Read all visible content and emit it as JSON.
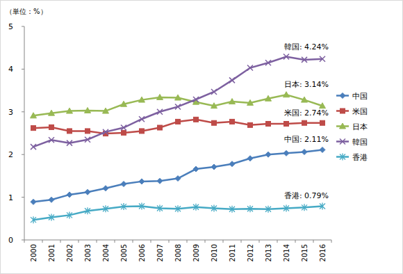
{
  "chart_data": {
    "type": "line",
    "y_label": "（単位：%）",
    "categories": [
      "2000",
      "2001",
      "2002",
      "2003",
      "2004",
      "2005",
      "2006",
      "2007",
      "2008",
      "2009",
      "2010",
      "2011",
      "2012",
      "2013",
      "2014",
      "2015",
      "2016"
    ],
    "series": [
      {
        "name": "中国",
        "color": "#4a7ebb",
        "marker": "diamond",
        "values": [
          0.89,
          0.94,
          1.06,
          1.12,
          1.21,
          1.31,
          1.37,
          1.38,
          1.44,
          1.66,
          1.71,
          1.78,
          1.91,
          2.0,
          2.03,
          2.06,
          2.11
        ]
      },
      {
        "name": "米国",
        "color": "#be4b48",
        "marker": "square",
        "values": [
          2.62,
          2.64,
          2.55,
          2.55,
          2.49,
          2.51,
          2.55,
          2.63,
          2.77,
          2.82,
          2.74,
          2.77,
          2.69,
          2.72,
          2.72,
          2.74,
          2.74
        ]
      },
      {
        "name": "日本",
        "color": "#98b954",
        "marker": "triangle",
        "values": [
          2.91,
          2.97,
          3.02,
          3.03,
          3.02,
          3.18,
          3.28,
          3.34,
          3.33,
          3.23,
          3.14,
          3.24,
          3.21,
          3.31,
          3.4,
          3.28,
          3.14
        ]
      },
      {
        "name": "韓国",
        "color": "#7d60a0",
        "marker": "x",
        "values": [
          2.18,
          2.34,
          2.27,
          2.35,
          2.53,
          2.63,
          2.83,
          3.0,
          3.12,
          3.29,
          3.47,
          3.74,
          4.03,
          4.15,
          4.29,
          4.22,
          4.24
        ]
      },
      {
        "name": "香港",
        "color": "#46aac5",
        "marker": "star",
        "values": [
          0.47,
          0.53,
          0.58,
          0.68,
          0.73,
          0.78,
          0.79,
          0.74,
          0.73,
          0.77,
          0.74,
          0.72,
          0.73,
          0.72,
          0.74,
          0.76,
          0.79
        ]
      }
    ],
    "annotations": [
      "中国: 2.11%",
      "米国: 2.74%",
      "日本: 3.14%",
      "韓国: 4.24%",
      "香港: 0.79%"
    ],
    "ylim": [
      0,
      5
    ],
    "yticks": [
      0,
      1,
      2,
      3,
      4,
      5
    ],
    "grid": false,
    "legend": "right"
  }
}
